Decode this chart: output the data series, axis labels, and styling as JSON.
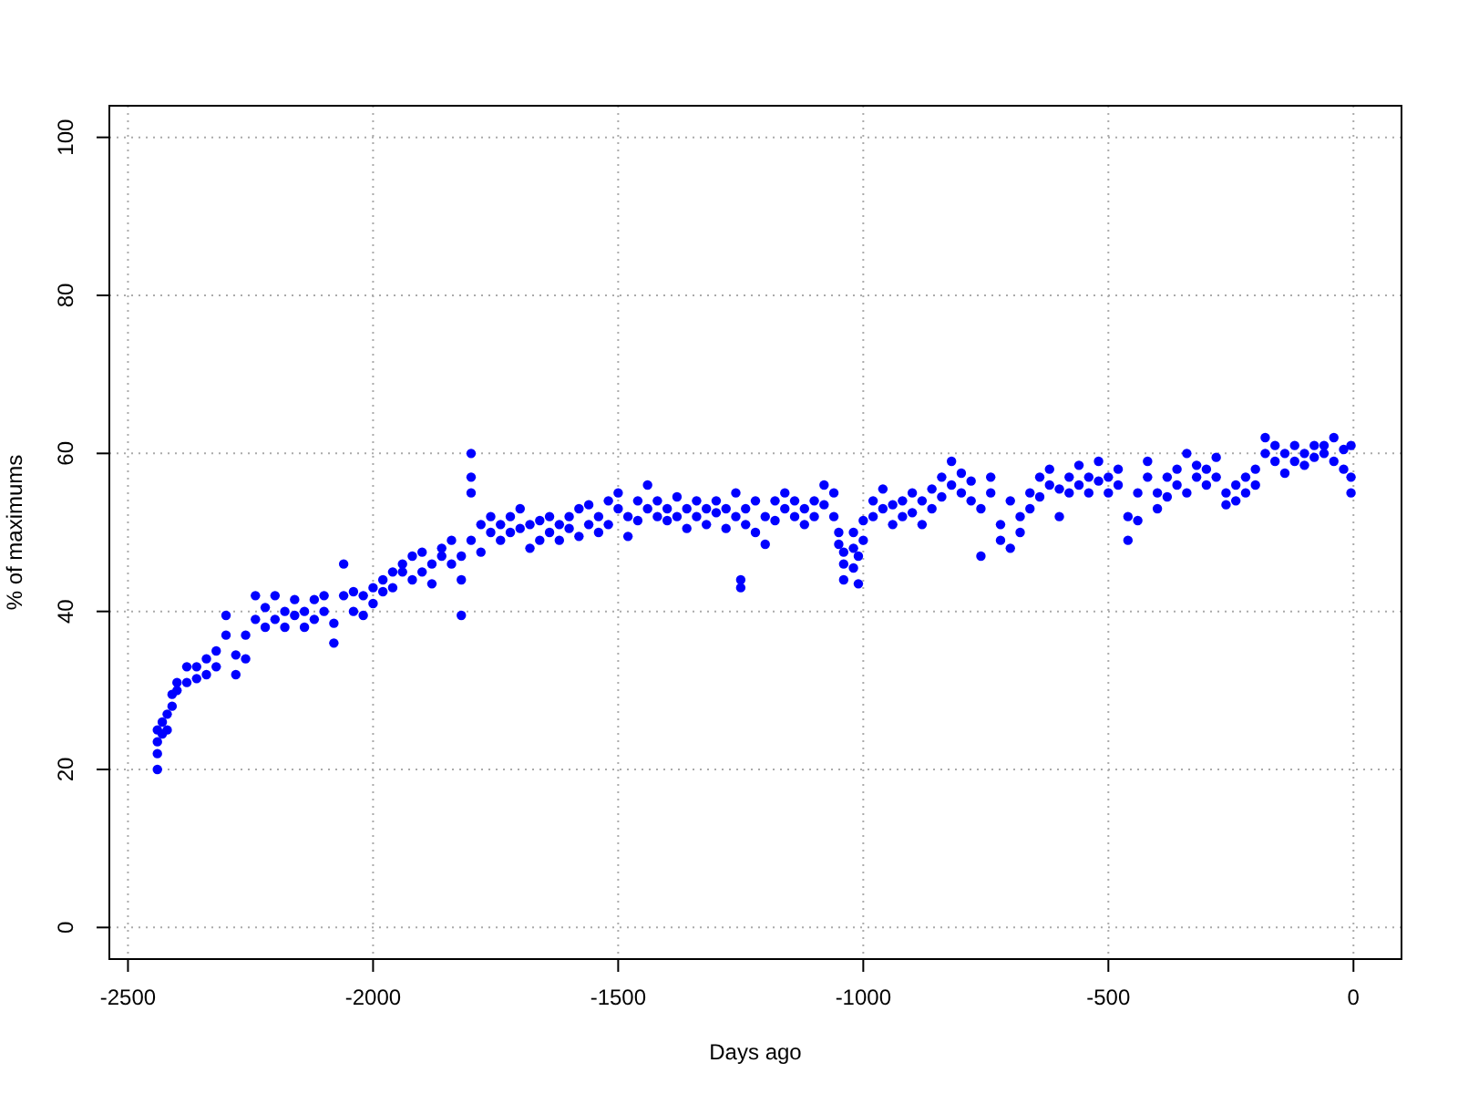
{
  "chart_data": {
    "type": "scatter",
    "xlabel": "Days ago",
    "ylabel": "% of maximums",
    "xlim": [
      -2538,
      98
    ],
    "ylim": [
      -4,
      104
    ],
    "xticks": [
      -2500,
      -2000,
      -1500,
      -1000,
      -500,
      0
    ],
    "yticks": [
      0,
      20,
      40,
      60,
      80,
      100
    ],
    "grid": true,
    "marker": "circle",
    "series": [
      {
        "color": "#0000ff",
        "x": [
          -2440,
          -2440,
          -2440,
          -2440,
          -2430,
          -2430,
          -2420,
          -2420,
          -2410,
          -2410,
          -2400,
          -2400,
          -2380,
          -2380,
          -2360,
          -2360,
          -2340,
          -2340,
          -2320,
          -2320,
          -2300,
          -2300,
          -2280,
          -2280,
          -2260,
          -2260,
          -2240,
          -2240,
          -2220,
          -2220,
          -2200,
          -2200,
          -2180,
          -2180,
          -2160,
          -2160,
          -2140,
          -2140,
          -2120,
          -2120,
          -2100,
          -2100,
          -2080,
          -2080,
          -2060,
          -2060,
          -2040,
          -2040,
          -2020,
          -2020,
          -2000,
          -2000,
          -1980,
          -1980,
          -1960,
          -1960,
          -1940,
          -1940,
          -1920,
          -1920,
          -1900,
          -1900,
          -1880,
          -1880,
          -1860,
          -1860,
          -1840,
          -1840,
          -1820,
          -1820,
          -1820,
          -1800,
          -1800,
          -1800,
          -1800,
          -1780,
          -1780,
          -1760,
          -1760,
          -1740,
          -1740,
          -1720,
          -1720,
          -1700,
          -1700,
          -1680,
          -1680,
          -1660,
          -1660,
          -1640,
          -1640,
          -1620,
          -1620,
          -1600,
          -1600,
          -1580,
          -1580,
          -1560,
          -1560,
          -1540,
          -1540,
          -1520,
          -1520,
          -1500,
          -1500,
          -1480,
          -1480,
          -1460,
          -1460,
          -1440,
          -1440,
          -1420,
          -1420,
          -1400,
          -1400,
          -1380,
          -1380,
          -1360,
          -1360,
          -1340,
          -1340,
          -1320,
          -1320,
          -1300,
          -1300,
          -1280,
          -1280,
          -1260,
          -1260,
          -1250,
          -1250,
          -1240,
          -1240,
          -1220,
          -1220,
          -1200,
          -1200,
          -1180,
          -1180,
          -1160,
          -1160,
          -1140,
          -1140,
          -1120,
          -1120,
          -1100,
          -1100,
          -1080,
          -1080,
          -1060,
          -1060,
          -1050,
          -1050,
          -1040,
          -1040,
          -1040,
          -1020,
          -1020,
          -1020,
          -1010,
          -1010,
          -1000,
          -1000,
          -980,
          -980,
          -960,
          -960,
          -940,
          -940,
          -920,
          -920,
          -900,
          -900,
          -880,
          -880,
          -860,
          -860,
          -840,
          -840,
          -820,
          -820,
          -800,
          -800,
          -780,
          -780,
          -760,
          -760,
          -740,
          -740,
          -720,
          -720,
          -700,
          -700,
          -680,
          -680,
          -660,
          -660,
          -640,
          -640,
          -620,
          -620,
          -600,
          -600,
          -580,
          -580,
          -560,
          -560,
          -540,
          -540,
          -520,
          -520,
          -500,
          -500,
          -480,
          -480,
          -460,
          -460,
          -440,
          -440,
          -420,
          -420,
          -400,
          -400,
          -380,
          -380,
          -360,
          -360,
          -340,
          -340,
          -320,
          -320,
          -300,
          -300,
          -280,
          -280,
          -260,
          -260,
          -240,
          -240,
          -220,
          -220,
          -200,
          -200,
          -180,
          -180,
          -160,
          -160,
          -140,
          -140,
          -120,
          -120,
          -100,
          -100,
          -80,
          -80,
          -60,
          -60,
          -40,
          -40,
          -20,
          -20,
          -5,
          -5,
          -5
        ],
        "values": [
          20,
          22,
          23.5,
          25,
          24.5,
          26,
          25,
          27,
          28,
          29.5,
          30,
          31,
          31,
          33,
          33,
          31.5,
          32,
          34,
          35,
          33,
          37,
          39.5,
          34.5,
          32,
          34,
          37,
          39,
          42,
          38,
          40.5,
          42,
          39,
          40,
          38,
          41.5,
          39.5,
          38,
          40,
          39,
          41.5,
          40,
          42,
          38.5,
          36,
          42,
          46,
          40,
          42.5,
          39.5,
          42,
          43,
          41,
          44,
          42.5,
          45,
          43,
          46,
          45,
          47,
          44,
          45,
          47.5,
          46,
          43.5,
          48,
          47,
          49,
          46,
          44,
          39.5,
          47,
          60,
          57,
          55,
          49,
          51,
          47.5,
          50,
          52,
          49,
          51,
          52,
          50,
          53,
          50.5,
          51,
          48,
          49,
          51.5,
          50,
          52,
          51,
          49,
          50.5,
          52,
          53,
          49.5,
          51,
          53.5,
          52,
          50,
          54,
          51,
          53,
          55,
          52,
          49.5,
          54,
          51.5,
          56,
          53,
          54,
          52,
          53,
          51.5,
          54.5,
          52,
          53,
          50.5,
          52,
          54,
          53,
          51,
          52.5,
          54,
          50.5,
          53,
          52,
          55,
          43,
          44,
          51,
          53,
          54,
          50,
          52,
          48.5,
          54,
          51.5,
          55,
          53,
          52,
          54,
          53,
          51,
          54,
          52,
          56,
          53.5,
          52,
          55,
          50,
          48.5,
          46,
          44,
          47.5,
          48,
          45.5,
          50,
          43.5,
          47,
          49,
          51.5,
          52,
          54,
          55.5,
          53,
          51,
          53.5,
          54,
          52,
          55,
          52.5,
          54,
          51,
          55.5,
          53,
          57,
          54.5,
          59,
          56,
          55,
          57.5,
          54,
          56.5,
          47,
          53,
          55,
          57,
          51,
          49,
          54,
          48,
          52,
          50,
          55,
          53,
          57,
          54.5,
          58,
          56,
          55.5,
          52,
          57,
          55,
          58.5,
          56,
          57,
          55,
          59,
          56.5,
          57,
          55,
          56,
          58,
          52,
          49,
          51.5,
          55,
          59,
          57,
          55,
          53,
          57,
          54.5,
          58,
          56,
          60,
          55,
          57,
          58.5,
          56,
          58,
          59.5,
          57,
          55,
          53.5,
          54,
          56,
          55,
          57,
          56,
          58,
          60,
          62,
          61,
          59,
          57.5,
          60,
          59,
          61,
          60,
          58.5,
          61,
          59.5,
          60,
          61,
          62,
          59,
          60.5,
          58,
          61,
          57,
          55
        ]
      }
    ]
  }
}
